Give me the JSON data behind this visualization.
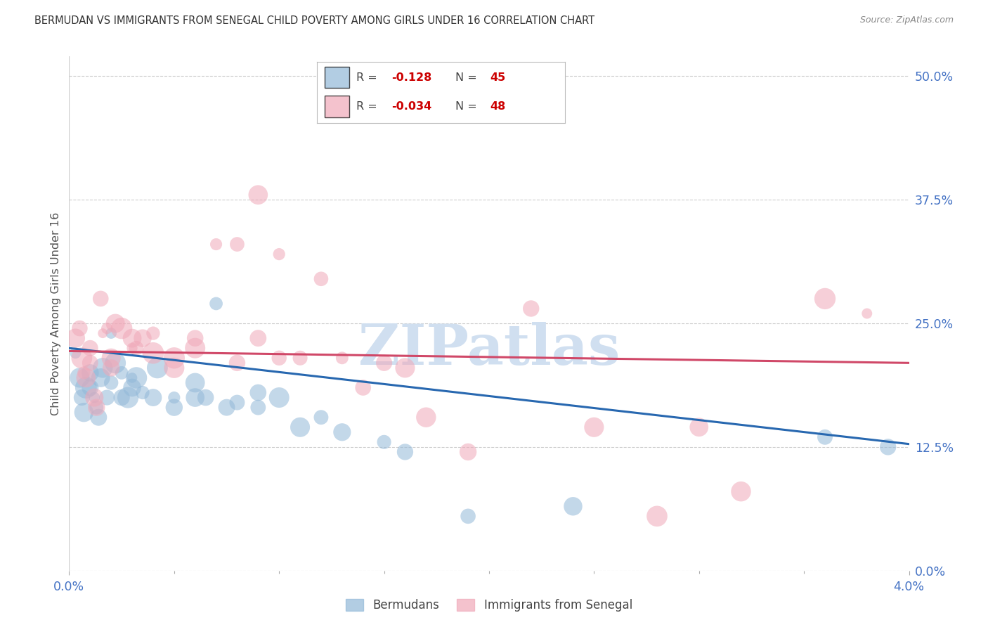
{
  "title": "BERMUDAN VS IMMIGRANTS FROM SENEGAL CHILD POVERTY AMONG GIRLS UNDER 16 CORRELATION CHART",
  "source": "Source: ZipAtlas.com",
  "ylabel": "Child Poverty Among Girls Under 16",
  "blue_r": -0.128,
  "blue_n": 45,
  "pink_r": -0.034,
  "pink_n": 48,
  "blue_color": "#92b8d8",
  "pink_color": "#f0a8b8",
  "blue_line_color": "#2868b0",
  "pink_line_color": "#d04868",
  "axis_label_color": "#4472c4",
  "title_color": "#333333",
  "source_color": "#888888",
  "ylabel_color": "#555555",
  "watermark_color": "#d0dff0",
  "legend_r_color": "#cc0000",
  "legend_n_color": "#cc0000",
  "grid_color": "#cccccc",
  "xmin": 0.0,
  "xmax": 0.04,
  "ymin": 0.0,
  "ymax": 0.52,
  "ytick_vals": [
    0.0,
    0.125,
    0.25,
    0.375,
    0.5
  ],
  "ytick_labels": [
    "0.0%",
    "12.5%",
    "25.0%",
    "37.5%",
    "50.0%"
  ],
  "xtick_show": [
    0.0,
    0.04
  ],
  "xtick_minor": [
    0.005,
    0.01,
    0.015,
    0.02,
    0.025,
    0.03,
    0.035
  ],
  "blue_trend_y0": 0.225,
  "blue_trend_y1": 0.128,
  "pink_trend_y0": 0.222,
  "pink_trend_y1": 0.21,
  "blue_scatter_x": [
    0.0003,
    0.0005,
    0.0006,
    0.0007,
    0.0008,
    0.001,
    0.001,
    0.0012,
    0.0013,
    0.0014,
    0.0015,
    0.0016,
    0.0018,
    0.002,
    0.002,
    0.0022,
    0.0025,
    0.0025,
    0.0028,
    0.003,
    0.003,
    0.0032,
    0.0035,
    0.004,
    0.0042,
    0.005,
    0.005,
    0.006,
    0.006,
    0.0065,
    0.007,
    0.0075,
    0.008,
    0.009,
    0.009,
    0.01,
    0.011,
    0.012,
    0.013,
    0.015,
    0.016,
    0.019,
    0.024,
    0.036,
    0.039
  ],
  "blue_scatter_y": [
    0.22,
    0.195,
    0.175,
    0.16,
    0.185,
    0.2,
    0.185,
    0.175,
    0.165,
    0.155,
    0.195,
    0.205,
    0.175,
    0.24,
    0.19,
    0.21,
    0.2,
    0.175,
    0.175,
    0.195,
    0.185,
    0.195,
    0.18,
    0.175,
    0.205,
    0.175,
    0.165,
    0.19,
    0.175,
    0.175,
    0.27,
    0.165,
    0.17,
    0.18,
    0.165,
    0.175,
    0.145,
    0.155,
    0.14,
    0.13,
    0.12,
    0.055,
    0.065,
    0.135,
    0.125
  ],
  "pink_scatter_x": [
    0.0003,
    0.0005,
    0.0006,
    0.0007,
    0.0008,
    0.001,
    0.001,
    0.0012,
    0.0013,
    0.0015,
    0.0016,
    0.0018,
    0.002,
    0.002,
    0.0022,
    0.0025,
    0.003,
    0.003,
    0.0032,
    0.0035,
    0.004,
    0.004,
    0.005,
    0.005,
    0.006,
    0.006,
    0.007,
    0.008,
    0.008,
    0.009,
    0.009,
    0.01,
    0.01,
    0.011,
    0.012,
    0.013,
    0.014,
    0.015,
    0.016,
    0.017,
    0.019,
    0.022,
    0.025,
    0.028,
    0.03,
    0.032,
    0.036,
    0.038
  ],
  "pink_scatter_y": [
    0.235,
    0.245,
    0.215,
    0.2,
    0.195,
    0.225,
    0.21,
    0.175,
    0.165,
    0.275,
    0.24,
    0.245,
    0.215,
    0.205,
    0.25,
    0.245,
    0.235,
    0.225,
    0.225,
    0.235,
    0.24,
    0.22,
    0.215,
    0.205,
    0.235,
    0.225,
    0.33,
    0.33,
    0.21,
    0.38,
    0.235,
    0.32,
    0.215,
    0.215,
    0.295,
    0.215,
    0.185,
    0.21,
    0.205,
    0.155,
    0.12,
    0.265,
    0.145,
    0.055,
    0.145,
    0.08,
    0.275,
    0.26
  ],
  "bottom_legend_labels": [
    "Bermudans",
    "Immigrants from Senegal"
  ]
}
